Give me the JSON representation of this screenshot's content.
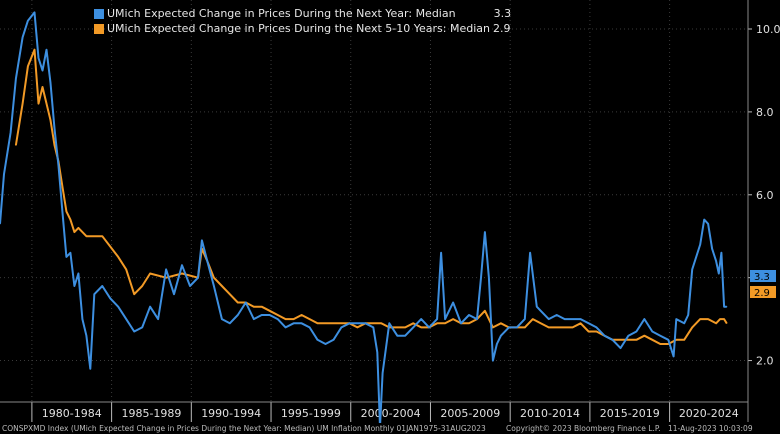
{
  "legend": [
    {
      "name": "UMich Expected Change in Prices During the Next Year: Median",
      "value": "3.3",
      "color": "#3d8fe0"
    },
    {
      "name": "UMich Expected Change in Prices During the Next 5-10 Years: Median",
      "value": "2.9",
      "color": "#f29a26"
    }
  ],
  "footer": {
    "left": "CONSPXMD Index (UMich Expected Change in Prices During the Next Year: Median) UM Inflation  Monthly 01JAN1975-31AUG2023",
    "middle": "Copyright© 2023 Bloomberg Finance L.P.",
    "right": "11-Aug-2023 10:03:09"
  },
  "chart_data": {
    "type": "line",
    "x_range": [
      "1978-01",
      "2024-12"
    ],
    "ylim": [
      1.0,
      10.7
    ],
    "y_ticks": [
      "2.0",
      "4.0",
      "6.0",
      "8.0",
      "10.0"
    ],
    "x_tick_labels": [
      "1980-1984",
      "1985-1989",
      "1990-1994",
      "1995-1999",
      "2000-2004",
      "2005-2009",
      "2010-2014",
      "2015-2019",
      "2020-2024"
    ],
    "grid": true,
    "legend_position": "top-left",
    "series": [
      {
        "name": "UMich Expected Change in Prices During the Next Year: Median",
        "color": "#3d8fe0",
        "last_value": "3.3",
        "points": [
          [
            "1978-01",
            5.3
          ],
          [
            "1978-04",
            6.5
          ],
          [
            "1978-09",
            7.5
          ],
          [
            "1979-01",
            8.8
          ],
          [
            "1979-06",
            9.8
          ],
          [
            "1979-10",
            10.2
          ],
          [
            "1980-03",
            10.4
          ],
          [
            "1980-06",
            9.3
          ],
          [
            "1980-09",
            9.0
          ],
          [
            "1980-12",
            9.5
          ],
          [
            "1981-03",
            8.7
          ],
          [
            "1981-06",
            7.6
          ],
          [
            "1981-09",
            6.7
          ],
          [
            "1981-12",
            5.6
          ],
          [
            "1982-03",
            4.5
          ],
          [
            "1982-06",
            4.6
          ],
          [
            "1982-09",
            3.8
          ],
          [
            "1982-12",
            4.1
          ],
          [
            "1983-03",
            3.0
          ],
          [
            "1983-06",
            2.6
          ],
          [
            "1983-09",
            1.8
          ],
          [
            "1983-12",
            3.6
          ],
          [
            "1984-06",
            3.8
          ],
          [
            "1984-12",
            3.5
          ],
          [
            "1985-06",
            3.3
          ],
          [
            "1985-12",
            3.0
          ],
          [
            "1986-06",
            2.7
          ],
          [
            "1986-12",
            2.8
          ],
          [
            "1987-06",
            3.3
          ],
          [
            "1987-12",
            3.0
          ],
          [
            "1988-06",
            4.2
          ],
          [
            "1988-12",
            3.6
          ],
          [
            "1989-06",
            4.3
          ],
          [
            "1989-12",
            3.8
          ],
          [
            "1990-06",
            4.0
          ],
          [
            "1990-09",
            4.9
          ],
          [
            "1991-01",
            4.4
          ],
          [
            "1991-06",
            3.8
          ],
          [
            "1991-12",
            3.0
          ],
          [
            "1992-06",
            2.9
          ],
          [
            "1992-12",
            3.1
          ],
          [
            "1993-06",
            3.4
          ],
          [
            "1993-12",
            3.0
          ],
          [
            "1994-06",
            3.1
          ],
          [
            "1994-12",
            3.1
          ],
          [
            "1995-06",
            3.0
          ],
          [
            "1995-12",
            2.8
          ],
          [
            "1996-06",
            2.9
          ],
          [
            "1996-12",
            2.9
          ],
          [
            "1997-06",
            2.8
          ],
          [
            "1997-12",
            2.5
          ],
          [
            "1998-06",
            2.4
          ],
          [
            "1998-12",
            2.5
          ],
          [
            "1999-06",
            2.8
          ],
          [
            "1999-12",
            2.9
          ],
          [
            "2000-06",
            2.9
          ],
          [
            "2000-12",
            2.9
          ],
          [
            "2001-06",
            2.8
          ],
          [
            "2001-09",
            2.2
          ],
          [
            "2001-11",
            0.4
          ],
          [
            "2002-01",
            1.7
          ],
          [
            "2002-06",
            2.9
          ],
          [
            "2002-12",
            2.6
          ],
          [
            "2003-06",
            2.6
          ],
          [
            "2003-12",
            2.8
          ],
          [
            "2004-06",
            3.0
          ],
          [
            "2004-12",
            2.8
          ],
          [
            "2005-06",
            3.0
          ],
          [
            "2005-09",
            4.6
          ],
          [
            "2005-12",
            3.0
          ],
          [
            "2006-06",
            3.4
          ],
          [
            "2006-12",
            2.9
          ],
          [
            "2007-06",
            3.1
          ],
          [
            "2007-12",
            3.0
          ],
          [
            "2008-03",
            4.0
          ],
          [
            "2008-06",
            5.1
          ],
          [
            "2008-09",
            4.0
          ],
          [
            "2008-12",
            2.0
          ],
          [
            "2009-03",
            2.4
          ],
          [
            "2009-06",
            2.6
          ],
          [
            "2009-12",
            2.8
          ],
          [
            "2010-06",
            2.8
          ],
          [
            "2010-12",
            3.0
          ],
          [
            "2011-04",
            4.6
          ],
          [
            "2011-09",
            3.3
          ],
          [
            "2011-12",
            3.2
          ],
          [
            "2012-06",
            3.0
          ],
          [
            "2012-12",
            3.1
          ],
          [
            "2013-06",
            3.0
          ],
          [
            "2013-12",
            3.0
          ],
          [
            "2014-06",
            3.0
          ],
          [
            "2014-12",
            2.9
          ],
          [
            "2015-06",
            2.8
          ],
          [
            "2015-12",
            2.6
          ],
          [
            "2016-06",
            2.5
          ],
          [
            "2016-12",
            2.3
          ],
          [
            "2017-06",
            2.6
          ],
          [
            "2017-12",
            2.7
          ],
          [
            "2018-06",
            3.0
          ],
          [
            "2018-12",
            2.7
          ],
          [
            "2019-06",
            2.6
          ],
          [
            "2019-12",
            2.5
          ],
          [
            "2020-04",
            2.1
          ],
          [
            "2020-06",
            3.0
          ],
          [
            "2020-12",
            2.9
          ],
          [
            "2021-03",
            3.1
          ],
          [
            "2021-06",
            4.2
          ],
          [
            "2021-12",
            4.8
          ],
          [
            "2022-03",
            5.4
          ],
          [
            "2022-06",
            5.3
          ],
          [
            "2022-09",
            4.7
          ],
          [
            "2022-12",
            4.4
          ],
          [
            "2023-02",
            4.1
          ],
          [
            "2023-04",
            4.6
          ],
          [
            "2023-06",
            3.3
          ],
          [
            "2023-08",
            3.3
          ]
        ]
      },
      {
        "name": "UMich Expected Change in Prices During the Next 5-10 Years: Median",
        "color": "#f29a26",
        "last_value": "2.9",
        "points": [
          [
            "1979-01",
            7.2
          ],
          [
            "1979-06",
            8.2
          ],
          [
            "1979-10",
            9.1
          ],
          [
            "1980-03",
            9.5
          ],
          [
            "1980-06",
            8.2
          ],
          [
            "1980-09",
            8.6
          ],
          [
            "1981-03",
            7.8
          ],
          [
            "1981-06",
            7.2
          ],
          [
            "1981-09",
            6.8
          ],
          [
            "1981-12",
            6.2
          ],
          [
            "1982-03",
            5.6
          ],
          [
            "1982-06",
            5.4
          ],
          [
            "1982-09",
            5.1
          ],
          [
            "1982-12",
            5.2
          ],
          [
            "1983-06",
            5.0
          ],
          [
            "1984-06",
            5.0
          ],
          [
            "1985-06",
            4.5
          ],
          [
            "1985-12",
            4.2
          ],
          [
            "1986-06",
            3.6
          ],
          [
            "1986-12",
            3.8
          ],
          [
            "1987-06",
            4.1
          ],
          [
            "1988-06",
            4.0
          ],
          [
            "1989-06",
            4.1
          ],
          [
            "1990-06",
            4.0
          ],
          [
            "1990-09",
            4.7
          ],
          [
            "1991-01",
            4.4
          ],
          [
            "1991-06",
            4.0
          ],
          [
            "1991-12",
            3.8
          ],
          [
            "1992-06",
            3.6
          ],
          [
            "1992-12",
            3.4
          ],
          [
            "1993-06",
            3.4
          ],
          [
            "1993-12",
            3.3
          ],
          [
            "1994-06",
            3.3
          ],
          [
            "1994-12",
            3.2
          ],
          [
            "1995-06",
            3.1
          ],
          [
            "1995-12",
            3.0
          ],
          [
            "1996-06",
            3.0
          ],
          [
            "1996-12",
            3.1
          ],
          [
            "1997-06",
            3.0
          ],
          [
            "1997-12",
            2.9
          ],
          [
            "1998-06",
            2.9
          ],
          [
            "1998-12",
            2.9
          ],
          [
            "1999-06",
            2.9
          ],
          [
            "1999-12",
            2.9
          ],
          [
            "2000-06",
            2.8
          ],
          [
            "2000-12",
            2.9
          ],
          [
            "2001-06",
            2.9
          ],
          [
            "2001-12",
            2.9
          ],
          [
            "2002-06",
            2.8
          ],
          [
            "2002-12",
            2.8
          ],
          [
            "2003-06",
            2.8
          ],
          [
            "2003-12",
            2.9
          ],
          [
            "2004-06",
            2.8
          ],
          [
            "2004-12",
            2.8
          ],
          [
            "2005-06",
            2.9
          ],
          [
            "2005-12",
            2.9
          ],
          [
            "2006-06",
            3.0
          ],
          [
            "2006-12",
            2.9
          ],
          [
            "2007-06",
            2.9
          ],
          [
            "2007-12",
            3.0
          ],
          [
            "2008-06",
            3.2
          ],
          [
            "2008-12",
            2.8
          ],
          [
            "2009-06",
            2.9
          ],
          [
            "2009-12",
            2.8
          ],
          [
            "2010-06",
            2.8
          ],
          [
            "2010-12",
            2.8
          ],
          [
            "2011-06",
            3.0
          ],
          [
            "2011-12",
            2.9
          ],
          [
            "2012-06",
            2.8
          ],
          [
            "2012-12",
            2.8
          ],
          [
            "2013-06",
            2.8
          ],
          [
            "2013-12",
            2.8
          ],
          [
            "2014-06",
            2.9
          ],
          [
            "2014-12",
            2.7
          ],
          [
            "2015-06",
            2.7
          ],
          [
            "2015-12",
            2.6
          ],
          [
            "2016-06",
            2.5
          ],
          [
            "2016-12",
            2.5
          ],
          [
            "2017-06",
            2.5
          ],
          [
            "2017-12",
            2.5
          ],
          [
            "2018-06",
            2.6
          ],
          [
            "2018-12",
            2.5
          ],
          [
            "2019-06",
            2.4
          ],
          [
            "2019-12",
            2.4
          ],
          [
            "2020-06",
            2.5
          ],
          [
            "2020-12",
            2.5
          ],
          [
            "2021-06",
            2.8
          ],
          [
            "2021-12",
            3.0
          ],
          [
            "2022-06",
            3.0
          ],
          [
            "2022-12",
            2.9
          ],
          [
            "2023-03",
            3.0
          ],
          [
            "2023-06",
            3.0
          ],
          [
            "2023-08",
            2.9
          ]
        ]
      }
    ]
  }
}
